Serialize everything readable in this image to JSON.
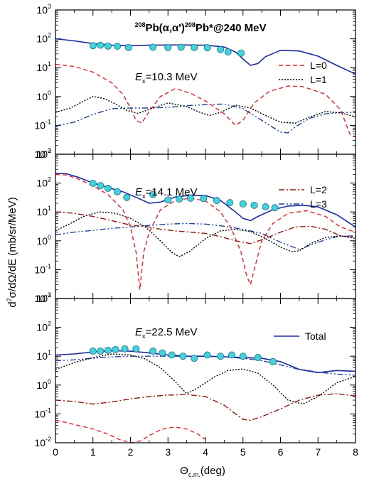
{
  "chart_data": {
    "type": "line",
    "title": "208Pb(α,α')208Pb*@240 MeV",
    "title_parts": {
      "pre": "208",
      "a": "Pb(α,α')",
      "b": "208",
      "c": "Pb*@240 MeV"
    },
    "xlabel": "Θc.m.(deg)",
    "xlabel_parts": {
      "main": "Θ",
      "sub": "c.m.",
      "rest": "(deg)"
    },
    "ylabel": "d2σ/dΩ/dE (mb/sr/MeV)",
    "ylabel_parts": {
      "a": "d",
      "sup": "2",
      "b": "σ/dΩ/dE (mb/sr/MeV)"
    },
    "xlim": [
      0,
      8
    ],
    "ylim": [
      0.01,
      1000
    ],
    "yscale": "log",
    "x_ticks": [
      "0",
      "1",
      "2",
      "3",
      "4",
      "5",
      "6",
      "7",
      "8"
    ],
    "y_ticks": [
      {
        "base": "10",
        "exp": "-2"
      },
      {
        "base": "10",
        "exp": "-1"
      },
      {
        "base": "10",
        "exp": "0"
      },
      {
        "base": "10",
        "exp": "1"
      },
      {
        "base": "10",
        "exp": "2"
      },
      {
        "base": "10",
        "exp": "3"
      }
    ],
    "colors": {
      "L0": "#e8202a",
      "L1": "#000000",
      "L2": "#8b1a10",
      "L3": "#1f3f9e",
      "total": "#1a2aa0",
      "data": "#3fd3e0"
    },
    "panels": [
      {
        "energy_label": {
          "pre": "E",
          "sub": "x",
          "post": "=10.3 MeV"
        },
        "legend": [
          {
            "key": "L0",
            "label": "L=0"
          },
          {
            "key": "L1",
            "label": "L=1"
          }
        ],
        "series": [
          {
            "key": "total",
            "x": [
              0,
              0.5,
              1,
              1.5,
              2,
              2.5,
              3,
              3.5,
              4,
              4.5,
              4.8,
              5,
              5.2,
              5.4,
              5.6,
              6,
              6.5,
              7,
              7.5,
              8
            ],
            "y": [
              100,
              85,
              68,
              60,
              58,
              60,
              61,
              61,
              60,
              52,
              35,
              20,
              12,
              14,
              24,
              40,
              38,
              25,
              12,
              6
            ]
          },
          {
            "key": "L0",
            "x": [
              0,
              0.5,
              1,
              1.5,
              1.8,
              2,
              2.15,
              2.3,
              2.5,
              2.8,
              3.2,
              3.6,
              4.0,
              4.5,
              4.8,
              5.0,
              5.3,
              5.7,
              6.2,
              6.6,
              7.2,
              7.6,
              7.85,
              8
            ],
            "y": [
              13,
              11,
              7,
              3,
              1.2,
              0.4,
              0.15,
              0.12,
              0.3,
              1,
              1.9,
              1.3,
              0.7,
              0.25,
              0.1,
              0.15,
              0.6,
              1.5,
              2.3,
              2.2,
              1.2,
              0.35,
              0.05,
              0.04
            ]
          },
          {
            "key": "L1",
            "x": [
              0,
              0.4,
              0.8,
              1.0,
              1.3,
              1.6,
              1.9,
              2.2,
              2.6,
              3.0,
              3.5,
              3.8,
              4.1,
              4.4,
              4.8,
              5.2,
              5.6,
              6.0,
              6.4,
              6.8,
              7.2,
              7.6,
              8
            ],
            "y": [
              0.28,
              0.4,
              0.75,
              1.0,
              0.85,
              0.55,
              0.33,
              0.26,
              0.4,
              0.6,
              0.45,
              0.3,
              0.22,
              0.28,
              0.5,
              0.4,
              0.22,
              0.13,
              0.12,
              0.2,
              0.3,
              0.27,
              0.2
            ]
          },
          {
            "key": "L3",
            "x": [
              0,
              0.5,
              1,
              1.5,
              2,
              2.5,
              3,
              3.5,
              4,
              4.5,
              5,
              5.5,
              6,
              6.2,
              6.4,
              6.8,
              7.2,
              7.6,
              8
            ],
            "y": [
              0.095,
              0.13,
              0.24,
              0.38,
              0.4,
              0.4,
              0.42,
              0.48,
              0.52,
              0.55,
              0.38,
              0.15,
              0.058,
              0.055,
              0.09,
              0.18,
              0.25,
              0.28,
              0.28
            ]
          }
        ],
        "data_points": {
          "x": [
            1.0,
            1.2,
            1.4,
            1.65,
            1.95,
            2.6,
            3.0,
            3.35,
            3.7,
            4.05,
            4.4,
            4.6,
            4.95
          ],
          "y": [
            58,
            60,
            56,
            55,
            50,
            51,
            50,
            51,
            50,
            49,
            42,
            35,
            32
          ]
        }
      },
      {
        "energy_label": {
          "pre": "E",
          "sub": "x",
          "post": "=14.1 MeV"
        },
        "legend": [
          {
            "key": "L2",
            "label": "L=2"
          },
          {
            "key": "L3",
            "label": "L=3"
          }
        ],
        "series": [
          {
            "key": "total",
            "x": [
              0,
              0.3,
              0.6,
              1,
              1.4,
              1.8,
              2.2,
              2.5,
              2.8,
              3.2,
              3.6,
              4.0,
              4.4,
              4.8,
              5.0,
              5.2,
              5.4,
              5.8,
              6.2,
              6.6,
              7,
              7.5,
              8
            ],
            "y": [
              220,
              210,
              160,
              100,
              70,
              50,
              30,
              20,
              22,
              33,
              38,
              37,
              25,
              10,
              6,
              5,
              7,
              12,
              16,
              17,
              15,
              8,
              3
            ]
          },
          {
            "key": "L0",
            "x": [
              0,
              0.3,
              0.6,
              1,
              1.4,
              1.8,
              2.0,
              2.15,
              2.25,
              2.35,
              2.5,
              2.8,
              3.2,
              3.6,
              4.0,
              4.4,
              4.7,
              4.95,
              5.1,
              5.2,
              5.3,
              5.5,
              5.8,
              6.2,
              6.7,
              7.2,
              7.6,
              8
            ],
            "y": [
              200,
              190,
              140,
              80,
              40,
              12,
              3,
              0.4,
              0.02,
              0.4,
              2,
              12,
              25,
              30,
              24,
              10,
              2.5,
              0.4,
              0.06,
              0.03,
              0.1,
              1,
              4,
              9,
              11,
              7,
              3,
              2
            ]
          },
          {
            "key": "L1",
            "x": [
              0,
              0.4,
              0.8,
              1.2,
              1.6,
              2.0,
              2.4,
              2.8,
              3.1,
              3.3,
              3.6,
              4.0,
              4.4,
              4.8,
              5.2,
              5.6,
              6.0,
              6.3,
              6.5,
              6.8,
              7.2,
              7.6,
              8
            ],
            "y": [
              2.2,
              4,
              7.5,
              10,
              9,
              6,
              3,
              1,
              0.4,
              0.28,
              0.45,
              1.2,
              2.2,
              2.5,
              2.1,
              1.2,
              0.6,
              0.42,
              0.45,
              0.8,
              1.3,
              1.5,
              1.2
            ]
          },
          {
            "key": "L2",
            "x": [
              0,
              0.5,
              1,
              1.5,
              2,
              2.5,
              2.8,
              3.2,
              3.6,
              4,
              4.4,
              4.8,
              5.2,
              5.6,
              6,
              6.4,
              6.8,
              7.2,
              7.6,
              8
            ],
            "y": [
              10,
              9,
              7,
              5,
              3.5,
              3,
              2.5,
              2.2,
              2,
              1.8,
              1.4,
              1,
              0.8,
              1.2,
              2,
              3,
              3.2,
              2.5,
              1.5,
              1.3
            ]
          },
          {
            "key": "L3",
            "x": [
              0,
              0.5,
              1,
              1.5,
              2,
              2.5,
              3,
              3.5,
              4,
              4.5,
              5,
              5.5,
              6,
              6.5,
              7,
              7.5,
              8
            ],
            "y": [
              1.6,
              2,
              2.3,
              2.7,
              3,
              3.4,
              3.8,
              4,
              3.8,
              3.2,
              2.5,
              1.8,
              0.9,
              0.5,
              0.9,
              1.4,
              1.5
            ]
          }
        ],
        "data_points": {
          "x": [
            1.0,
            1.2,
            1.4,
            1.65,
            1.9,
            2.6,
            3.0,
            3.3,
            3.6,
            3.95,
            4.3,
            4.65,
            5.0,
            5.3,
            5.6,
            5.85
          ],
          "y": [
            98,
            82,
            66,
            50,
            32,
            40,
            26,
            28,
            30,
            29,
            25,
            21,
            19,
            17,
            15,
            14
          ]
        }
      },
      {
        "energy_label": {
          "pre": "E",
          "sub": "x",
          "post": "=22.5 MeV"
        },
        "legend": [
          {
            "key": "total",
            "label": "Total"
          }
        ],
        "series": [
          {
            "key": "total",
            "x": [
              0,
              0.5,
              1,
              1.5,
              2,
              2.5,
              3,
              3.5,
              4,
              4.5,
              5,
              5.5,
              6,
              6.5,
              7,
              7.5,
              8
            ],
            "y": [
              11,
              12,
              14,
              15.5,
              15,
              13,
              11,
              10,
              10,
              9.5,
              9,
              8.5,
              6.5,
              3.5,
              2.7,
              3.2,
              3
            ]
          },
          {
            "key": "L0",
            "x": [
              0,
              0.3,
              0.6,
              1.0,
              1.4,
              1.7,
              1.9,
              2.0,
              2.05,
              2.3,
              2.5,
              2.8,
              3.0,
              3.2,
              3.5,
              3.8,
              4.0
            ],
            "y": [
              0.06,
              0.05,
              0.04,
              0.03,
              0.02,
              0.013,
              0.011,
              0.0105,
              0.01,
              0.012,
              0.018,
              0.028,
              0.033,
              0.035,
              0.03,
              0.02,
              0.013
            ]
          },
          {
            "key": "L1",
            "x": [
              0,
              0.5,
              1,
              1.5,
              2,
              2.4,
              2.8,
              3.2,
              3.5,
              3.8,
              4.2,
              4.6,
              5,
              5.4,
              5.8,
              6.2,
              6.6,
              7,
              7.5,
              8
            ],
            "y": [
              3.5,
              6,
              9,
              12,
              11,
              8,
              4,
              1.3,
              0.5,
              0.8,
              1.8,
              3.2,
              3.6,
              2.6,
              1,
              0.3,
              0.22,
              0.4,
              1.2,
              2
            ]
          },
          {
            "key": "L2",
            "x": [
              0,
              0.5,
              1,
              1.5,
              2,
              2.5,
              3,
              3.5,
              4,
              4.5,
              4.8,
              5,
              5.2,
              5.5,
              6,
              6.5,
              7,
              7.5,
              8
            ],
            "y": [
              0.3,
              0.27,
              0.22,
              0.26,
              0.33,
              0.4,
              0.45,
              0.47,
              0.4,
              0.2,
              0.1,
              0.065,
              0.06,
              0.08,
              0.15,
              0.3,
              0.45,
              0.5,
              0.42
            ]
          },
          {
            "key": "L3",
            "x": [
              0,
              0.5,
              1,
              1.5,
              2,
              2.5,
              3,
              3.5,
              4,
              4.5,
              5,
              5.5,
              6,
              6.5,
              7,
              7.5,
              8
            ],
            "y": [
              7,
              7.5,
              8.5,
              9.5,
              10,
              10,
              10,
              10,
              10,
              9.5,
              8.5,
              7,
              5,
              3.5,
              2.8,
              2.4,
              2.2
            ]
          }
        ],
        "data_points": {
          "x": [
            1.0,
            1.2,
            1.4,
            1.6,
            1.85,
            2.15,
            2.6,
            2.85,
            3.1,
            3.4,
            3.7,
            4.05,
            4.4,
            4.7,
            5.0,
            5.4,
            5.8
          ],
          "y": [
            15,
            15,
            16,
            17,
            18,
            18,
            15,
            13,
            11,
            10,
            8.5,
            11,
            10,
            11,
            10,
            9,
            6.5
          ]
        }
      }
    ]
  }
}
